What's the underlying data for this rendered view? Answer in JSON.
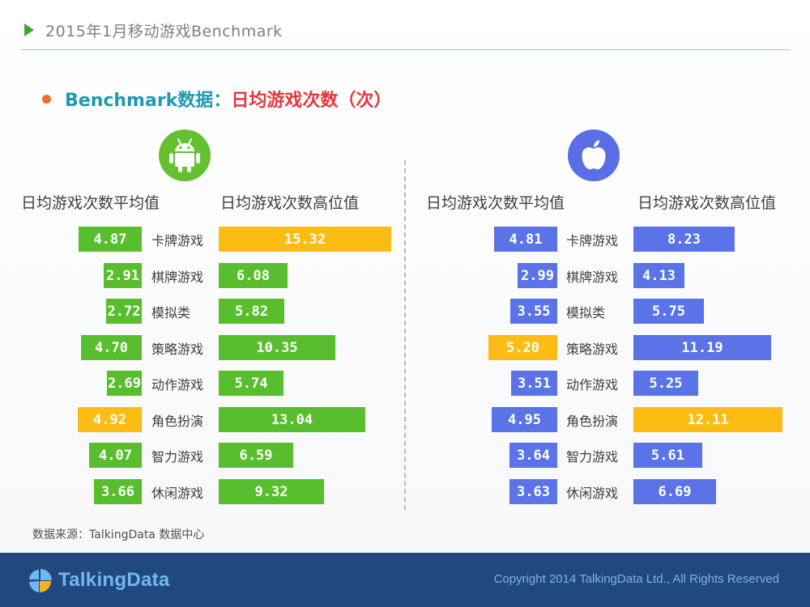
{
  "slide_title": "2015年1月移动游戏Benchmark",
  "section": {
    "part1": "Benchmark数据：",
    "part2": "日均游戏次数（次）"
  },
  "icons": {
    "android": "android-logo-icon",
    "apple": "apple-logo-icon"
  },
  "colors": {
    "android_green": "#58be2e",
    "ios_blue": "#5a73e6",
    "highlight_orange": "#fbbc13",
    "title_teal": "#1d9ab2",
    "title_red": "#e8363a",
    "footer_navy": "#21497f"
  },
  "chart_data": [
    {
      "type": "bar",
      "platform": "Android",
      "categories": [
        "卡牌游戏",
        "棋牌游戏",
        "模拟类",
        "策略游戏",
        "动作游戏",
        "角色扮演",
        "智力游戏",
        "休闲游戏"
      ],
      "series": [
        {
          "name": "日均游戏次数平均值",
          "values": [
            4.87,
            2.91,
            2.72,
            4.7,
            2.69,
            4.92,
            4.07,
            3.66
          ],
          "labels": [
            "4.87",
            "2.91",
            "2.72",
            "4.70",
            "2.69",
            "4.92",
            "4.07",
            "3.66"
          ],
          "highlight_index": 5
        },
        {
          "name": "日均游戏次数高位值",
          "values": [
            15.32,
            6.08,
            5.82,
            10.35,
            5.74,
            13.04,
            6.59,
            9.32
          ],
          "labels": [
            "15.32",
            "6.08",
            "5.82",
            "10.35",
            "5.74",
            "13.04",
            "6.59",
            "9.32"
          ],
          "highlight_index": 0
        }
      ]
    },
    {
      "type": "bar",
      "platform": "iOS",
      "categories": [
        "卡牌游戏",
        "棋牌游戏",
        "模拟类",
        "策略游戏",
        "动作游戏",
        "角色扮演",
        "智力游戏",
        "休闲游戏"
      ],
      "series": [
        {
          "name": "日均游戏次数平均值",
          "values": [
            4.81,
            2.99,
            3.55,
            5.2,
            3.51,
            4.95,
            3.64,
            3.63
          ],
          "labels": [
            "4.81",
            "2.99",
            "3.55",
            "5.20",
            "3.51",
            "4.95",
            "3.64",
            "3.63"
          ],
          "highlight_index": 3
        },
        {
          "name": "日均游戏次数高位值",
          "values": [
            8.23,
            4.13,
            5.75,
            11.19,
            5.25,
            12.11,
            5.61,
            6.69
          ],
          "labels": [
            "8.23",
            "4.13",
            "5.75",
            "11.19",
            "5.25",
            "12.11",
            "5.61",
            "6.69"
          ],
          "highlight_index": 5
        }
      ]
    }
  ],
  "source_note": "数据来源：TalkingData 数据中心",
  "footer": {
    "logo_text": "TalkingData",
    "logo_icon": "talkingdata-pie-icon",
    "copyright": "Copyright 2014 TalkingData Ltd., All Rights Reserved"
  }
}
